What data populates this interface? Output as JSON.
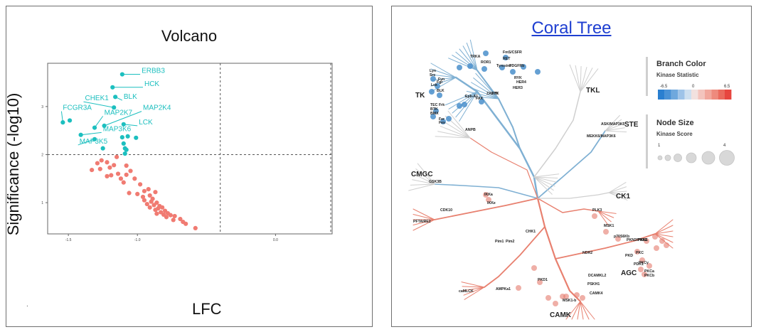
{
  "panels": {
    "left": {
      "title": "Volcano",
      "footnote": "."
    },
    "right": {
      "title": "Coral Tree",
      "legend": {
        "branch_color_title": "Branch Color",
        "branch_color_subtitle": "Kinase Statistic",
        "branch_color_ticks": [
          "-6.5",
          "0",
          "6.5"
        ],
        "node_size_title": "Node Size",
        "node_size_subtitle": "Kinase Score",
        "node_size_ticks": [
          "1",
          "4"
        ]
      },
      "group_labels": [
        "TK",
        "TKL",
        "STE",
        "CMGC",
        "CK1",
        "AGC",
        "CAMK"
      ],
      "kinase_labels": [
        "TRKA",
        "ROR1",
        "FmS/CSFR",
        "RET",
        "Tyrosine",
        "PDGFRb",
        "RYK",
        "HER4",
        "HER3",
        "Lyn",
        "Src",
        "Lck",
        "Fgr",
        "BLK",
        "Fyn",
        "Eph-A1",
        "FAK",
        "ZAP70",
        "SYK",
        "TEC",
        "BTK",
        "BMX",
        "Frk",
        "Fer",
        "Fes",
        "ASK/MAP3K5",
        "MEKK6/MAP3K6",
        "ANPB",
        "GSK3B",
        "CDK10",
        "PFTAIRE2",
        "IKKa",
        "IKKe",
        "PLK3",
        "CHK1",
        "MSK1",
        "p70S6Kb",
        "PKN2/PRK2",
        "PKN1",
        "PKD",
        "PKC",
        "PDK1",
        "PKCy",
        "PKCa",
        "PKCb",
        "Pim1",
        "Pim2",
        "DCAMKL2",
        "PSKH1",
        "caMLCK",
        "AMPKa1",
        "PKD1",
        "MSK1-b",
        "CAMK4",
        "NDR2"
      ]
    }
  },
  "chart_data": [
    {
      "type": "scatter",
      "title": "Volcano",
      "xlabel": "LFC",
      "ylabel": "Significance (-log10)",
      "xlim": [
        -1.65,
        0.41
      ],
      "ylim": [
        0.35,
        3.9
      ],
      "x_ticks": [
        "-1.5",
        "-1.0",
        "0.0"
      ],
      "y_ticks": [
        "1",
        "2",
        "3"
      ],
      "x_tick_values": [
        -1.5,
        -1.0,
        0.0
      ],
      "y_tick_values": [
        1,
        2,
        3
      ],
      "thresholds": {
        "y": 2.0,
        "x": [
          -0.4,
          0.4
        ]
      },
      "colors": {
        "significant": "#1cbfbf",
        "nonsignificant": "#f07b72"
      },
      "labeled_points": [
        {
          "label": "ERBB3",
          "x": -1.11,
          "y": 3.67,
          "lx": -0.98,
          "ly": 3.67
        },
        {
          "label": "HCK",
          "x": -1.18,
          "y": 3.4,
          "lx": -0.96,
          "ly": 3.4
        },
        {
          "label": "BLK",
          "x": -1.16,
          "y": 3.2,
          "lx": -1.11,
          "ly": 3.13
        },
        {
          "label": "CHEK1",
          "x": -1.17,
          "y": 2.98,
          "lx": -1.39,
          "ly": 3.1
        },
        {
          "label": "MAP2K4",
          "x": -1.24,
          "y": 2.6,
          "lx": -0.97,
          "ly": 2.9
        },
        {
          "label": "FCGR3A",
          "x": -1.54,
          "y": 2.67,
          "lx": -1.55,
          "ly": 2.9
        },
        {
          "label": "MAP2K7",
          "x": -1.31,
          "y": 2.56,
          "lx": -1.25,
          "ly": 2.8
        },
        {
          "label": "LCK",
          "x": -1.1,
          "y": 2.63,
          "lx": -1.0,
          "ly": 2.6
        },
        {
          "label": "MAP3K6",
          "x": -1.41,
          "y": 2.41,
          "lx": -1.26,
          "ly": 2.46
        },
        {
          "label": "MAP3K5",
          "x": -1.31,
          "y": 2.32,
          "lx": -1.43,
          "ly": 2.2
        }
      ],
      "significant_points": [
        {
          "x": -1.49,
          "y": 2.71
        },
        {
          "x": -1.11,
          "y": 2.36
        },
        {
          "x": -1.07,
          "y": 2.38
        },
        {
          "x": -1.01,
          "y": 2.35
        },
        {
          "x": -1.1,
          "y": 2.23
        },
        {
          "x": -1.09,
          "y": 2.13
        },
        {
          "x": -1.08,
          "y": 2.1
        },
        {
          "x": -1.25,
          "y": 2.13
        },
        {
          "x": -1.09,
          "y": 2.02
        }
      ],
      "nonsignificant_points": [
        {
          "x": -1.15,
          "y": 1.95
        },
        {
          "x": -1.26,
          "y": 1.88
        },
        {
          "x": -1.29,
          "y": 1.82
        },
        {
          "x": -1.22,
          "y": 1.84
        },
        {
          "x": -1.17,
          "y": 1.78
        },
        {
          "x": -1.2,
          "y": 1.73
        },
        {
          "x": -1.08,
          "y": 1.77
        },
        {
          "x": -1.05,
          "y": 1.66
        },
        {
          "x": -1.27,
          "y": 1.7
        },
        {
          "x": -1.33,
          "y": 1.68
        },
        {
          "x": -1.19,
          "y": 1.57
        },
        {
          "x": -1.14,
          "y": 1.6
        },
        {
          "x": -1.22,
          "y": 1.55
        },
        {
          "x": -1.08,
          "y": 1.58
        },
        {
          "x": -1.12,
          "y": 1.5
        },
        {
          "x": -1.1,
          "y": 1.42
        },
        {
          "x": -1.02,
          "y": 1.5
        },
        {
          "x": -0.98,
          "y": 1.38
        },
        {
          "x": -0.92,
          "y": 1.28
        },
        {
          "x": -0.95,
          "y": 1.24
        },
        {
          "x": -1.0,
          "y": 1.18
        },
        {
          "x": -0.87,
          "y": 1.22
        },
        {
          "x": -1.06,
          "y": 1.2
        },
        {
          "x": -0.96,
          "y": 1.12
        },
        {
          "x": -0.91,
          "y": 1.15
        },
        {
          "x": -0.89,
          "y": 1.08
        },
        {
          "x": -0.95,
          "y": 1.05
        },
        {
          "x": -0.9,
          "y": 1.02
        },
        {
          "x": -0.86,
          "y": 1.0
        },
        {
          "x": -0.93,
          "y": 0.97
        },
        {
          "x": -0.88,
          "y": 0.95
        },
        {
          "x": -0.84,
          "y": 0.93
        },
        {
          "x": -0.91,
          "y": 0.9
        },
        {
          "x": -0.85,
          "y": 0.88
        },
        {
          "x": -0.82,
          "y": 0.9
        },
        {
          "x": -0.87,
          "y": 0.85
        },
        {
          "x": -0.8,
          "y": 0.83
        },
        {
          "x": -0.83,
          "y": 0.8
        },
        {
          "x": -0.78,
          "y": 0.78
        },
        {
          "x": -0.86,
          "y": 0.77
        },
        {
          "x": -0.81,
          "y": 0.75
        },
        {
          "x": -0.76,
          "y": 0.74
        },
        {
          "x": -0.73,
          "y": 0.72
        },
        {
          "x": -0.79,
          "y": 0.7
        },
        {
          "x": -0.69,
          "y": 0.66
        },
        {
          "x": -0.74,
          "y": 0.64
        },
        {
          "x": -0.67,
          "y": 0.6
        },
        {
          "x": -0.65,
          "y": 0.56
        },
        {
          "x": -0.58,
          "y": 0.47
        }
      ]
    }
  ]
}
